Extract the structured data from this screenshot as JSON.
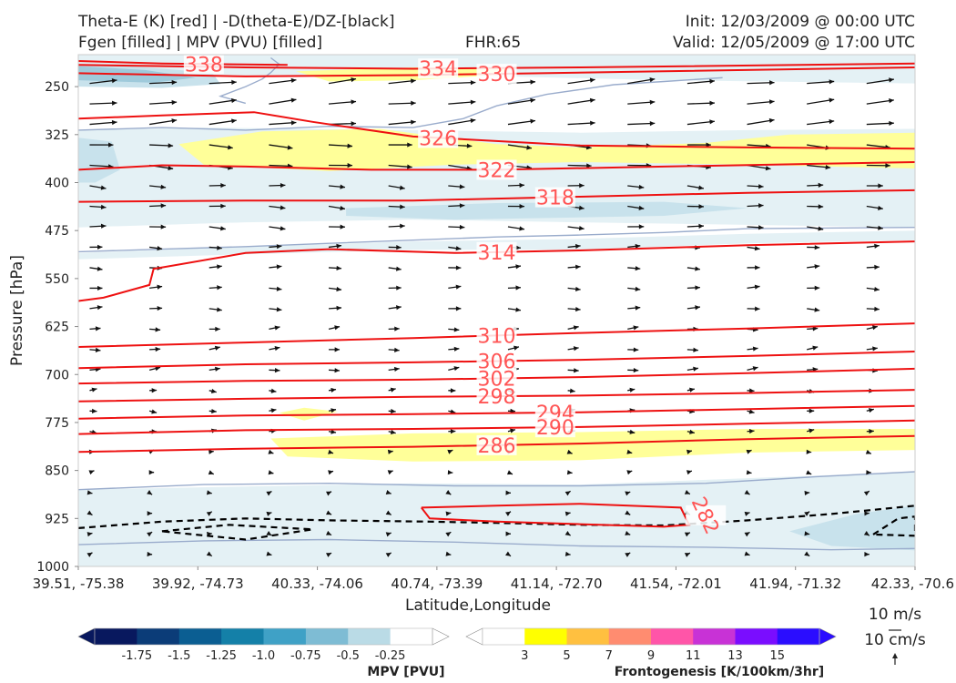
{
  "header": {
    "title_line1": "Theta-E (K) [red] | -D(theta-E)/DZ-[black]",
    "title_line2": "Fgen [filled] | MPV (PVU) [filled]",
    "fhr": "FHR:65",
    "init": "Init: 12/03/2009 @ 00:00 UTC",
    "valid": "Valid: 12/05/2009 @ 17:00 UTC"
  },
  "colors": {
    "theta_e": "#ee1111",
    "theta_e_label": "#ff5555",
    "neg_ddz": "#000000",
    "mpv_outline": "#9aaccc",
    "fgen_fill": "#ffff99",
    "mpv_fill_light": "#e4f1f5",
    "mpv_fill_mid": "#c8e2ec",
    "mpv_fill_dark": "#9fcadb"
  },
  "chart_data": {
    "type": "cross-section",
    "xlabel": "Latitude,Longitude",
    "ylabel": "Pressure [hPa]",
    "x_ticks": [
      "39.51, -75.38",
      "39.92, -74.73",
      "40.33, -74.06",
      "40.74, -73.39",
      "41.14, -72.70",
      "41.54, -72.01",
      "41.94, -71.32",
      "42.33, -70.6"
    ],
    "y_ticks": [
      250,
      325,
      400,
      475,
      550,
      625,
      700,
      775,
      850,
      925,
      1000
    ],
    "y_range": [
      200,
      1000
    ],
    "theta_e_contours": [
      {
        "label": "338",
        "points": [
          [
            0,
            210
          ],
          [
            0.1,
            214
          ],
          [
            0.25,
            216
          ]
        ]
      },
      {
        "label": "334",
        "points": [
          [
            0,
            216
          ],
          [
            0.2,
            220
          ],
          [
            0.4,
            222
          ],
          [
            0.6,
            220
          ],
          [
            1,
            214
          ]
        ]
      },
      {
        "label": "330",
        "points": [
          [
            0,
            229
          ],
          [
            0.2,
            234
          ],
          [
            0.4,
            232
          ],
          [
            0.5,
            230
          ],
          [
            0.7,
            226
          ],
          [
            1,
            220
          ]
        ]
      },
      {
        "label": "326",
        "points": [
          [
            0,
            300
          ],
          [
            0.1,
            295
          ],
          [
            0.21,
            290
          ],
          [
            0.28,
            305
          ],
          [
            0.4,
            328
          ],
          [
            0.6,
            342
          ],
          [
            0.8,
            345
          ],
          [
            1,
            347
          ]
        ]
      },
      {
        "label": "322",
        "points": [
          [
            0,
            380
          ],
          [
            0.1,
            373
          ],
          [
            0.2,
            375
          ],
          [
            0.35,
            380
          ],
          [
            0.5,
            380
          ],
          [
            0.7,
            375
          ],
          [
            1,
            368
          ]
        ]
      },
      {
        "label": "318",
        "points": [
          [
            0,
            430
          ],
          [
            0.2,
            428
          ],
          [
            0.4,
            428
          ],
          [
            0.6,
            422
          ],
          [
            0.8,
            416
          ],
          [
            1,
            412
          ]
        ]
      },
      {
        "label": "314",
        "points": [
          [
            0,
            585
          ],
          [
            0.03,
            580
          ],
          [
            0.085,
            560
          ],
          [
            0.09,
            535
          ],
          [
            0.2,
            510
          ],
          [
            0.3,
            504
          ],
          [
            0.45,
            510
          ],
          [
            0.6,
            506
          ],
          [
            0.8,
            498
          ],
          [
            1,
            492
          ]
        ]
      },
      {
        "label": "310",
        "points": [
          [
            0,
            657
          ],
          [
            0.2,
            650
          ],
          [
            0.4,
            643
          ],
          [
            0.6,
            635
          ],
          [
            0.8,
            628
          ],
          [
            1,
            620
          ]
        ]
      },
      {
        "label": "306",
        "points": [
          [
            0,
            690
          ],
          [
            0.2,
            684
          ],
          [
            0.4,
            681
          ],
          [
            0.6,
            677
          ],
          [
            0.8,
            671
          ],
          [
            1,
            664
          ]
        ]
      },
      {
        "label": "302",
        "points": [
          [
            0,
            714
          ],
          [
            0.2,
            710
          ],
          [
            0.4,
            708
          ],
          [
            0.6,
            704
          ],
          [
            0.8,
            698
          ],
          [
            1,
            691
          ]
        ]
      },
      {
        "label": "298",
        "points": [
          [
            0,
            742
          ],
          [
            0.2,
            738
          ],
          [
            0.4,
            735
          ],
          [
            0.6,
            733
          ],
          [
            0.8,
            729
          ],
          [
            1,
            724
          ]
        ]
      },
      {
        "label": "294",
        "points": [
          [
            0,
            769
          ],
          [
            0.2,
            764
          ],
          [
            0.4,
            762
          ],
          [
            0.6,
            759
          ],
          [
            0.8,
            754
          ],
          [
            1,
            749
          ]
        ]
      },
      {
        "label": "290",
        "points": [
          [
            0,
            793
          ],
          [
            0.2,
            787
          ],
          [
            0.4,
            785
          ],
          [
            0.6,
            782
          ],
          [
            0.8,
            777
          ],
          [
            1,
            772
          ]
        ]
      },
      {
        "label": "286",
        "points": [
          [
            0,
            821
          ],
          [
            0.2,
            816
          ],
          [
            0.4,
            813
          ],
          [
            0.6,
            808
          ],
          [
            0.8,
            801
          ],
          [
            1,
            796
          ]
        ]
      },
      {
        "label": "282",
        "points": [
          [
            0.41,
            908
          ],
          [
            0.42,
            925
          ],
          [
            0.5,
            930
          ],
          [
            0.6,
            934
          ],
          [
            0.7,
            938
          ],
          [
            0.73,
            935
          ],
          [
            0.72,
            908
          ],
          [
            0.6,
            902
          ],
          [
            0.5,
            905
          ],
          [
            0.41,
            908
          ]
        ]
      }
    ],
    "mpv_colorbar": {
      "label": "MPV [PVU]",
      "ticks": [
        "-1.75",
        "-1.5",
        "-1.25",
        "-1.0",
        "-0.75",
        "-0.5",
        "-0.25"
      ],
      "colors": [
        "#08185e",
        "#0b3c78",
        "#0b5e92",
        "#1480a8",
        "#3fa1c6",
        "#7ebcd4",
        "#badbe6",
        "#ffffff"
      ]
    },
    "fgen_colorbar": {
      "label": "Frontogenesis [K/100km/3hr]",
      "ticks": [
        "3",
        "5",
        "7",
        "9",
        "11",
        "13",
        "15"
      ],
      "colors": [
        "#ffffff",
        "#ffff00",
        "#ffc040",
        "#ff8c70",
        "#ff55a8",
        "#c832d6",
        "#7a0dff",
        "#2b0dff"
      ]
    },
    "wind_legend": {
      "horizontal": "10 m/s",
      "vertical": "10 cm/s"
    }
  }
}
